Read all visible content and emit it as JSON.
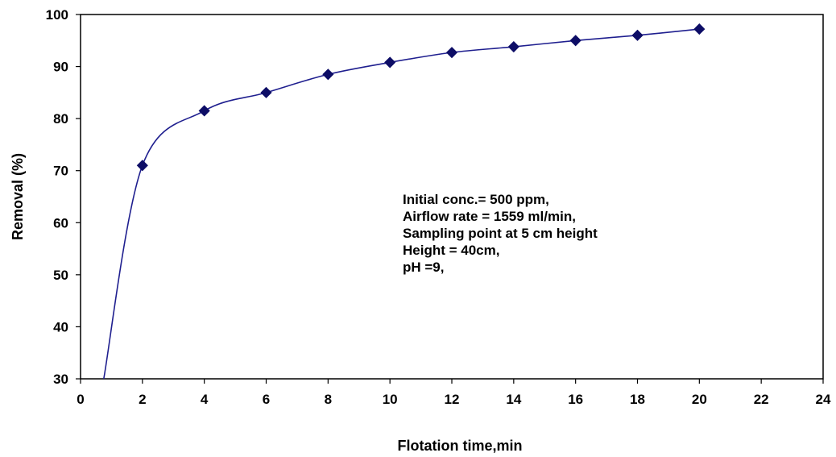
{
  "chart_data": {
    "type": "line",
    "title": "",
    "xlabel": "Flotation time,min",
    "ylabel": "Removal (%)",
    "xlim": [
      0,
      24
    ],
    "ylim": [
      30,
      100
    ],
    "xticks": [
      0,
      2,
      4,
      6,
      8,
      10,
      12,
      14,
      16,
      18,
      20,
      22,
      24
    ],
    "yticks": [
      30,
      40,
      50,
      60,
      70,
      80,
      90,
      100
    ],
    "grid": false,
    "legend": "none",
    "series": [
      {
        "color": "#1f1f8f",
        "marker": "diamond",
        "x": [
          2,
          4,
          6,
          8,
          10,
          12,
          14,
          16,
          18,
          20
        ],
        "y": [
          71,
          81.5,
          85,
          88.5,
          90.8,
          92.7,
          93.8,
          95,
          96,
          97.2
        ]
      }
    ],
    "annotation": [
      "Initial conc.= 500 ppm,",
      "Airflow rate = 1559 ml/min,",
      "Sampling point at 5 cm height",
      "Height = 40cm,",
      "pH =9,"
    ]
  }
}
